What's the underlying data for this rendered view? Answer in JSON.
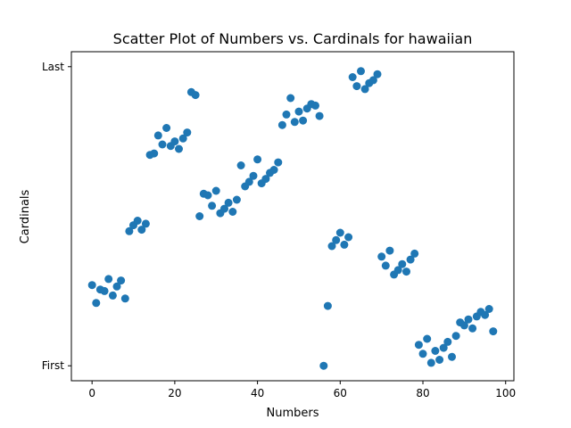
{
  "chart_data": {
    "type": "scatter",
    "title": "Scatter Plot of Numbers vs. Cardinals for hawaiian",
    "xlabel": "Numbers",
    "ylabel": "Cardinals",
    "xlim": [
      -5,
      102
    ],
    "ylim": [
      -0.05,
      1.05
    ],
    "x_ticks": [
      0,
      20,
      40,
      60,
      80,
      100
    ],
    "y_ticks": [
      {
        "value": 0,
        "label": "First"
      },
      {
        "value": 1,
        "label": "Last"
      }
    ],
    "grid": false,
    "marker_color": "#1f77b4",
    "points": [
      [
        0,
        0.27
      ],
      [
        1,
        0.21
      ],
      [
        2,
        0.255
      ],
      [
        3,
        0.25
      ],
      [
        4,
        0.29
      ],
      [
        5,
        0.235
      ],
      [
        6,
        0.265
      ],
      [
        7,
        0.285
      ],
      [
        8,
        0.225
      ],
      [
        9,
        0.45
      ],
      [
        10,
        0.47
      ],
      [
        11,
        0.485
      ],
      [
        12,
        0.455
      ],
      [
        13,
        0.475
      ],
      [
        14,
        0.705
      ],
      [
        15,
        0.71
      ],
      [
        16,
        0.77
      ],
      [
        17,
        0.74
      ],
      [
        18,
        0.795
      ],
      [
        19,
        0.735
      ],
      [
        20,
        0.75
      ],
      [
        21,
        0.725
      ],
      [
        22,
        0.76
      ],
      [
        23,
        0.78
      ],
      [
        24,
        0.915
      ],
      [
        25,
        0.905
      ],
      [
        26,
        0.5
      ],
      [
        27,
        0.575
      ],
      [
        28,
        0.57
      ],
      [
        29,
        0.535
      ],
      [
        30,
        0.585
      ],
      [
        31,
        0.51
      ],
      [
        32,
        0.525
      ],
      [
        33,
        0.545
      ],
      [
        34,
        0.515
      ],
      [
        35,
        0.555
      ],
      [
        36,
        0.67
      ],
      [
        37,
        0.6
      ],
      [
        38,
        0.615
      ],
      [
        39,
        0.635
      ],
      [
        40,
        0.69
      ],
      [
        41,
        0.61
      ],
      [
        42,
        0.625
      ],
      [
        43,
        0.645
      ],
      [
        44,
        0.655
      ],
      [
        45,
        0.68
      ],
      [
        46,
        0.805
      ],
      [
        47,
        0.84
      ],
      [
        48,
        0.895
      ],
      [
        49,
        0.815
      ],
      [
        50,
        0.85
      ],
      [
        51,
        0.82
      ],
      [
        52,
        0.86
      ],
      [
        53,
        0.875
      ],
      [
        54,
        0.87
      ],
      [
        55,
        0.835
      ],
      [
        56,
        0.0
      ],
      [
        57,
        0.2
      ],
      [
        58,
        0.4
      ],
      [
        59,
        0.42
      ],
      [
        60,
        0.445
      ],
      [
        61,
        0.405
      ],
      [
        62,
        0.43
      ],
      [
        63,
        0.965
      ],
      [
        64,
        0.935
      ],
      [
        65,
        0.985
      ],
      [
        66,
        0.925
      ],
      [
        67,
        0.945
      ],
      [
        68,
        0.955
      ],
      [
        69,
        0.975
      ],
      [
        70,
        0.365
      ],
      [
        71,
        0.335
      ],
      [
        72,
        0.385
      ],
      [
        73,
        0.305
      ],
      [
        74,
        0.32
      ],
      [
        75,
        0.34
      ],
      [
        76,
        0.315
      ],
      [
        77,
        0.355
      ],
      [
        78,
        0.375
      ],
      [
        79,
        0.07
      ],
      [
        80,
        0.04
      ],
      [
        81,
        0.09
      ],
      [
        82,
        0.01
      ],
      [
        83,
        0.05
      ],
      [
        84,
        0.02
      ],
      [
        85,
        0.06
      ],
      [
        86,
        0.08
      ],
      [
        87,
        0.03
      ],
      [
        88,
        0.1
      ],
      [
        89,
        0.145
      ],
      [
        90,
        0.135
      ],
      [
        91,
        0.155
      ],
      [
        92,
        0.125
      ],
      [
        93,
        0.165
      ],
      [
        94,
        0.18
      ],
      [
        95,
        0.17
      ],
      [
        96,
        0.19
      ],
      [
        97,
        0.115
      ]
    ]
  }
}
